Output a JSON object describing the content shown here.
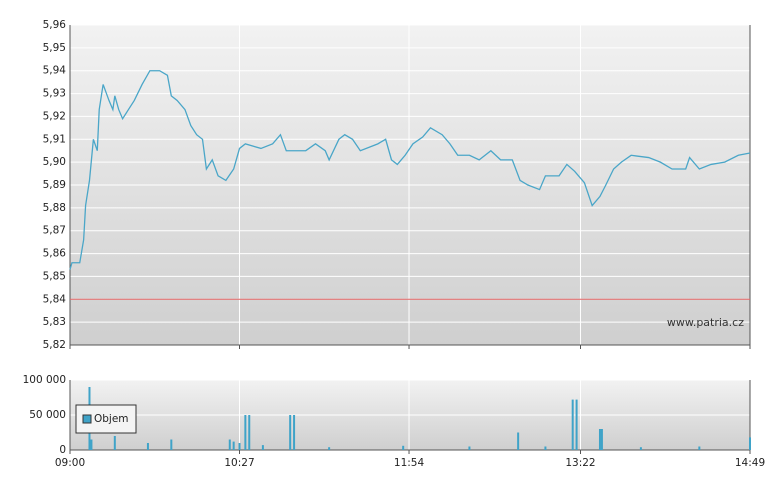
{
  "chart_data": [
    {
      "type": "line",
      "color": "#4aa6c8",
      "grid": true,
      "watermark": "www.patria.cz",
      "reference_line": {
        "value": 5.84,
        "color": "#e06060"
      },
      "xlim": [
        "09:00",
        "14:49"
      ],
      "xticks": [
        "09:00",
        "10:27",
        "11:54",
        "13:22",
        "14:49"
      ],
      "ylim": [
        5.82,
        5.96
      ],
      "yticks": [
        {
          "value": 5.82,
          "label": "5,82"
        },
        {
          "value": 5.83,
          "label": "5,83"
        },
        {
          "value": 5.84,
          "label": "5,84"
        },
        {
          "value": 5.85,
          "label": "5,85"
        },
        {
          "value": 5.86,
          "label": "5,86"
        },
        {
          "value": 5.87,
          "label": "5,87"
        },
        {
          "value": 5.88,
          "label": "5,88"
        },
        {
          "value": 5.89,
          "label": "5,89"
        },
        {
          "value": 5.9,
          "label": "5,90"
        },
        {
          "value": 5.91,
          "label": "5,91"
        },
        {
          "value": 5.92,
          "label": "5,92"
        },
        {
          "value": 5.93,
          "label": "5,93"
        },
        {
          "value": 5.94,
          "label": "5,94"
        },
        {
          "value": 5.95,
          "label": "5,95"
        },
        {
          "value": 5.96,
          "label": "5,96"
        }
      ],
      "x": [
        "09:00",
        "09:01",
        "09:05",
        "09:07",
        "09:08",
        "09:10",
        "09:12",
        "09:14",
        "09:15",
        "09:17",
        "09:20",
        "09:22",
        "09:23",
        "09:25",
        "09:27",
        "09:30",
        "09:33",
        "09:37",
        "09:41",
        "09:46",
        "09:50",
        "09:52",
        "09:55",
        "09:59",
        "10:02",
        "10:05",
        "10:08",
        "10:10",
        "10:13",
        "10:16",
        "10:20",
        "10:24",
        "10:27",
        "10:30",
        "10:38",
        "10:44",
        "10:48",
        "10:51",
        "11:01",
        "11:06",
        "11:11",
        "11:13",
        "11:18",
        "11:21",
        "11:25",
        "11:29",
        "11:38",
        "11:42",
        "11:45",
        "11:48",
        "11:52",
        "11:56",
        "12:01",
        "12:05",
        "12:11",
        "12:15",
        "12:19",
        "12:25",
        "12:30",
        "12:36",
        "12:41",
        "12:47",
        "12:51",
        "12:55",
        "13:01",
        "13:04",
        "13:11",
        "13:15",
        "13:19",
        "13:24",
        "13:28",
        "13:32",
        "13:35",
        "13:39",
        "13:43",
        "13:48",
        "13:57",
        "14:03",
        "14:09",
        "14:16",
        "14:18",
        "14:23",
        "14:29",
        "14:36",
        "14:43",
        "14:49"
      ],
      "values": [
        5.853,
        5.856,
        5.856,
        5.866,
        5.881,
        5.892,
        5.91,
        5.905,
        5.923,
        5.934,
        5.927,
        5.923,
        5.929,
        5.923,
        5.919,
        5.923,
        5.927,
        5.934,
        5.94,
        5.94,
        5.938,
        5.929,
        5.927,
        5.923,
        5.916,
        5.912,
        5.91,
        5.897,
        5.901,
        5.894,
        5.892,
        5.897,
        5.906,
        5.908,
        5.906,
        5.908,
        5.912,
        5.905,
        5.905,
        5.908,
        5.905,
        5.901,
        5.91,
        5.912,
        5.91,
        5.905,
        5.908,
        5.91,
        5.901,
        5.899,
        5.903,
        5.908,
        5.911,
        5.915,
        5.912,
        5.908,
        5.903,
        5.903,
        5.901,
        5.905,
        5.901,
        5.901,
        5.892,
        5.89,
        5.888,
        5.894,
        5.894,
        5.899,
        5.896,
        5.891,
        5.881,
        5.885,
        5.89,
        5.897,
        5.9,
        5.903,
        5.902,
        5.9,
        5.897,
        5.897,
        5.902,
        5.897,
        5.899,
        5.9,
        5.903,
        5.904
      ]
    },
    {
      "type": "bar",
      "grid": true,
      "legend": "top-left",
      "xlim": [
        "09:00",
        "14:49"
      ],
      "xticks": [
        "09:00",
        "10:27",
        "11:54",
        "13:22",
        "14:49"
      ],
      "ylim": [
        0,
        100000
      ],
      "yticks": [
        0,
        {
          "value": 50000,
          "label": "50 000"
        },
        {
          "value": 100000,
          "label": "100 000"
        }
      ],
      "x": [
        "09:10",
        "09:11",
        "09:23",
        "09:40",
        "09:52",
        "10:22",
        "10:24",
        "10:27",
        "10:30",
        "10:32",
        "10:39",
        "10:53",
        "10:55",
        "11:13",
        "11:51",
        "12:25",
        "12:50",
        "13:04",
        "13:18",
        "13:20",
        "13:32",
        "13:33",
        "13:53",
        "14:23",
        "14:49"
      ],
      "series": [
        {
          "name": "Objem",
          "color": "#3fa3c8",
          "values": [
            90000,
            15000,
            20000,
            10000,
            15000,
            15000,
            12000,
            10000,
            50000,
            50000,
            7000,
            50000,
            50000,
            4000,
            6000,
            5000,
            25000,
            5000,
            72000,
            72000,
            30000,
            30000,
            4000,
            5000,
            18000
          ]
        }
      ]
    }
  ]
}
